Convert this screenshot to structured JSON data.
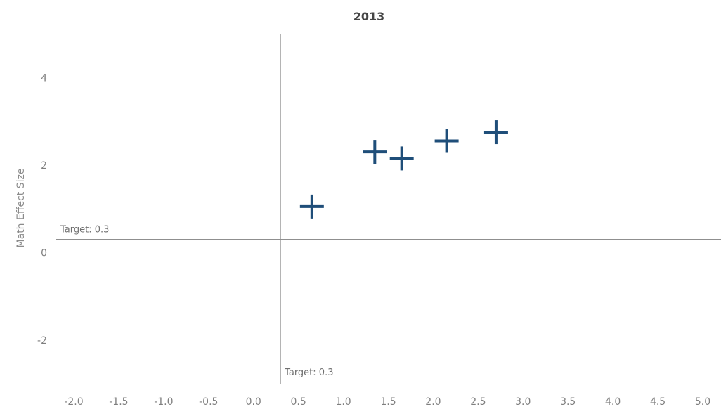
{
  "chart_data": {
    "type": "scatter",
    "title": "2013",
    "xlabel": "",
    "ylabel": "Math Effect Size",
    "xlim": [
      -2.0,
      5.0
    ],
    "ylim": [
      -3,
      5
    ],
    "x_ticks": [
      "-2.0",
      "-1.5",
      "-1.0",
      "-0.5",
      "0.0",
      "0.5",
      "1.0",
      "1.5",
      "2.0",
      "2.5",
      "3.0",
      "3.5",
      "4.0",
      "4.5",
      "5.0"
    ],
    "y_ticks": [
      "4",
      "2",
      "0",
      "-2"
    ],
    "grid": false,
    "marker": "plus",
    "marker_color": "#1f4e79",
    "series": [
      {
        "points": [
          {
            "x": 0.65,
            "y": 1.05
          },
          {
            "x": 1.35,
            "y": 2.3
          },
          {
            "x": 1.65,
            "y": 2.15
          },
          {
            "x": 2.15,
            "y": 2.55
          },
          {
            "x": 2.7,
            "y": 2.75
          }
        ]
      }
    ],
    "reference_lines": [
      {
        "axis": "x",
        "value": 0.3,
        "label": "Target: 0.3",
        "color": "#8f8f8f"
      },
      {
        "axis": "y",
        "value": 0.3,
        "label": "Target: 0.3",
        "color": "#8f8f8f"
      }
    ]
  }
}
